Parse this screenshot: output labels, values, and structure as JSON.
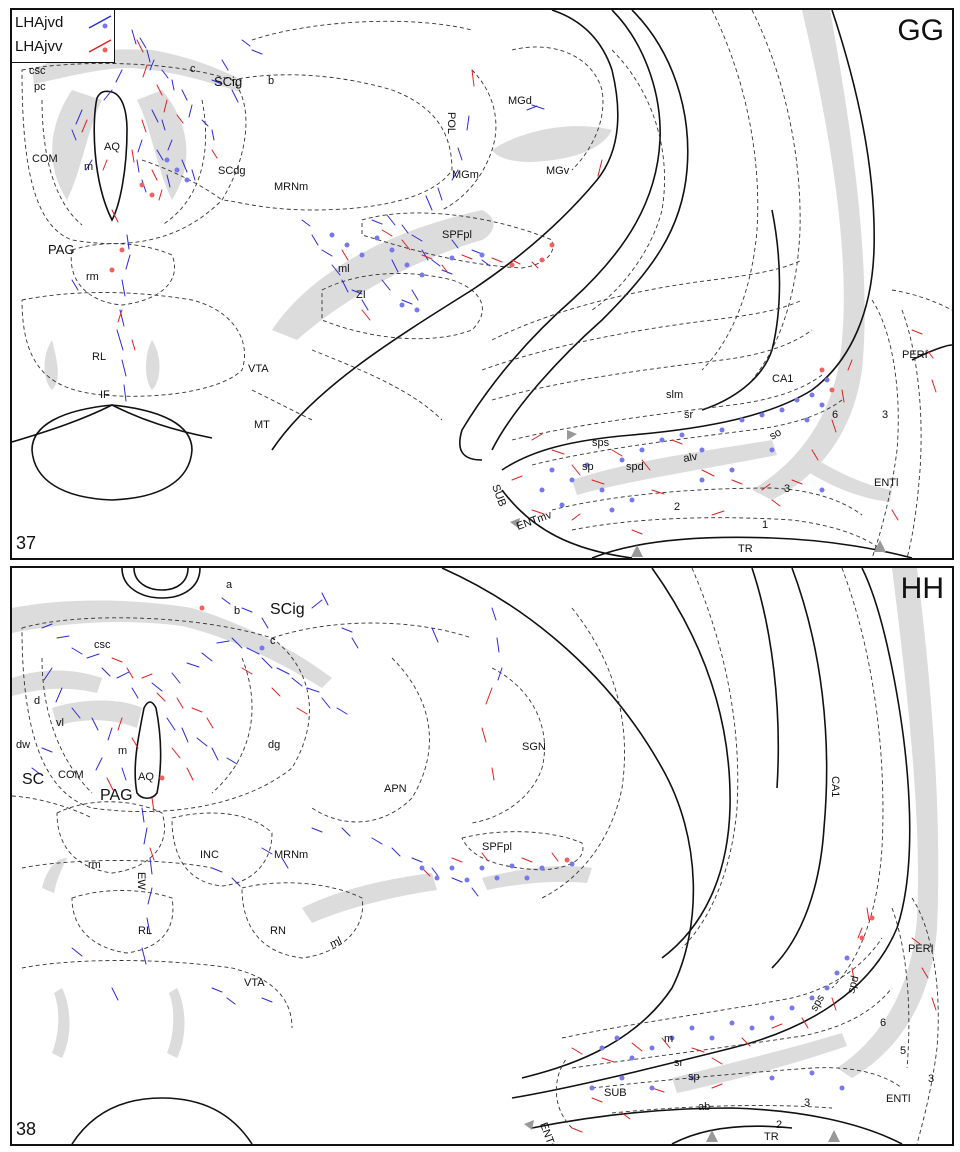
{
  "colors": {
    "lhajvd": "#2b2bd6",
    "lhajvd_dot": "#7777ee",
    "lhajvv": "#e02020",
    "shade": "#dcdcdc"
  },
  "legend": {
    "item1": "LHAjvd",
    "item2": "LHAjvv"
  },
  "panel_gg": {
    "letter": "GG",
    "number": "37",
    "labels": {
      "csc": "csc",
      "pc": "pc",
      "c": "c",
      "scig": "SCig",
      "b": "b",
      "aq": "AQ",
      "com": "COM",
      "m": "m",
      "scdg": "SCdg",
      "mrnm": "MRNm",
      "pol": "POL",
      "mgd": "MGd",
      "mgm": "MGm",
      "mgv": "MGv",
      "spfpl": "SPFpl",
      "pag": "PAG",
      "rm": "rm",
      "ml": "ml",
      "zi": "ZI",
      "rl": "RL",
      "vta": "VTA",
      "if": "IF",
      "mt": "MT",
      "slm": "slm",
      "sr": "sr",
      "ca1": "CA1",
      "so": "so",
      "six": "6",
      "three_a": "3",
      "peri": "PERI",
      "sps": "sps",
      "sp": "sp",
      "spd": "spd",
      "alv": "alv",
      "three_b": "3",
      "enti": "ENTl",
      "two": "2",
      "one": "1",
      "sub": "SUB",
      "entmv": "ENTmv",
      "tr": "TR"
    }
  },
  "panel_hh": {
    "letter": "HH",
    "number": "38",
    "labels": {
      "a": "a",
      "b": "b",
      "scig": "SCig",
      "c": "c",
      "csc": "csc",
      "d": "d",
      "vl": "vl",
      "dw": "dw",
      "dg": "dg",
      "sgn": "SGN",
      "sc": "SC",
      "com": "COM",
      "m": "m",
      "aq": "AQ",
      "pag": "PAG",
      "apn": "APN",
      "ca1": "CA1",
      "spfpl": "SPFpl",
      "rm": "rm",
      "inc": "INC",
      "mrnm": "MRNm",
      "ew": "EW",
      "rl": "RL",
      "rn": "RN",
      "ml": "ml",
      "vta": "VTA",
      "peri": "PERI",
      "sps": "sps",
      "spd": "spd",
      "six": "6",
      "five": "5",
      "m2": "m",
      "sr": "sr",
      "sp": "sp",
      "sub": "SUB",
      "ab": "ab",
      "three_a": "3",
      "three_b": "3",
      "two": "2",
      "enti": "ENTl",
      "entmv": "ENTmv",
      "tr": "TR"
    }
  }
}
